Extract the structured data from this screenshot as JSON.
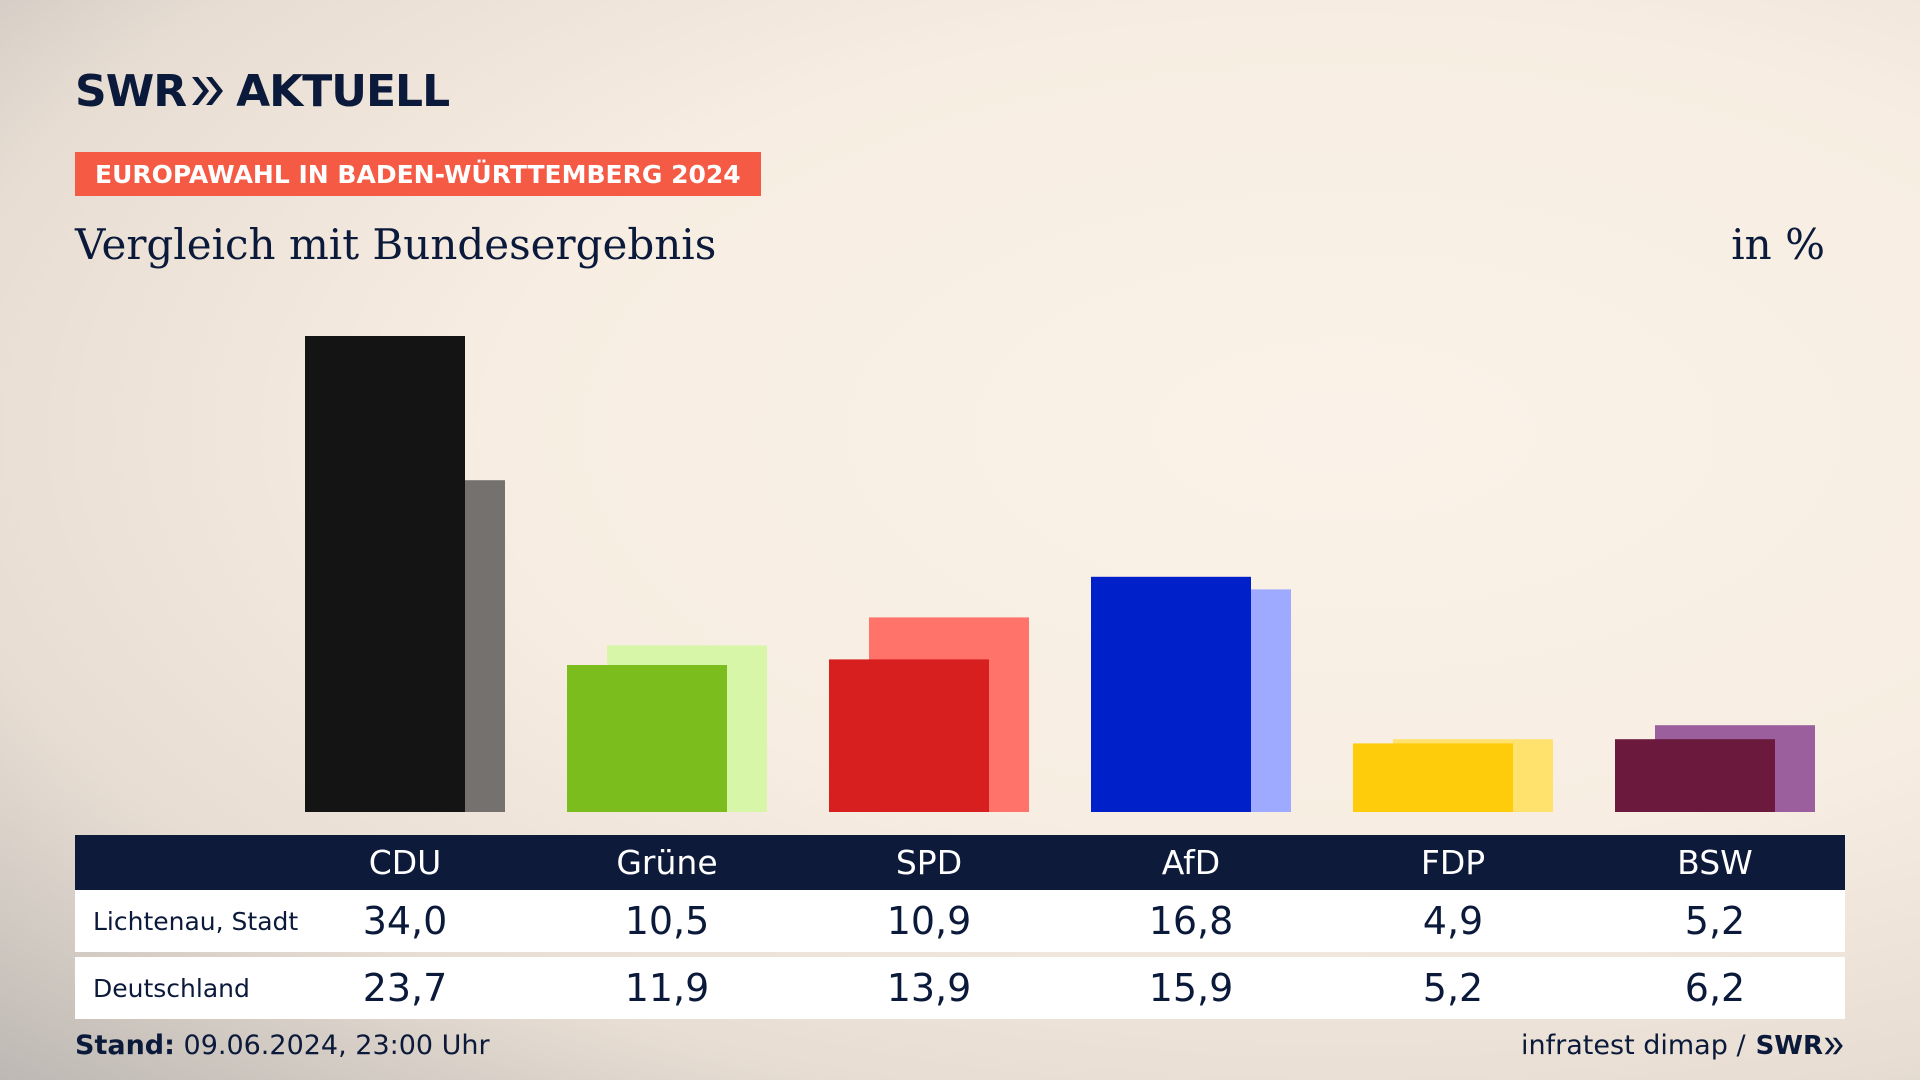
{
  "brand": {
    "logo_left": "SWR",
    "logo_right": "AKTUELL"
  },
  "tag": "EUROPAWAHL IN BADEN-WÜRTTEMBERG 2024",
  "subtitle": "Vergleich mit Bundesergebnis",
  "unit": "in %",
  "rows": {
    "local_label": "Lichtenau, Stadt",
    "national_label": "Deutschland"
  },
  "footer": {
    "stand_label": "Stand:",
    "stand_value": "09.06.2024, 23:00 Uhr",
    "source": "infratest dimap /",
    "source_logo": "SWR"
  },
  "chart_data": {
    "type": "bar",
    "categories": [
      "CDU",
      "Grüne",
      "SPD",
      "AfD",
      "FDP",
      "BSW"
    ],
    "series": [
      {
        "name": "Lichtenau, Stadt",
        "values": [
          34.0,
          10.5,
          10.9,
          16.8,
          4.9,
          5.2
        ],
        "value_labels": [
          "34,0",
          "10,5",
          "10,9",
          "16,8",
          "4,9",
          "5,2"
        ],
        "colors": [
          "#141414",
          "#7bbd1d",
          "#d71f1f",
          "#0021c9",
          "#ffcc0b",
          "#6b1a3e"
        ]
      },
      {
        "name": "Deutschland",
        "values": [
          23.7,
          11.9,
          13.9,
          15.9,
          5.2,
          6.2
        ],
        "value_labels": [
          "23,7",
          "11,9",
          "13,9",
          "15,9",
          "5,2",
          "6,2"
        ],
        "colors": [
          "#74716f",
          "#d8f6a8",
          "#ff736a",
          "#9eaaff",
          "#ffe16e",
          "#9a5f9c"
        ]
      }
    ],
    "ylim": [
      0,
      34.0
    ],
    "grid": false
  }
}
